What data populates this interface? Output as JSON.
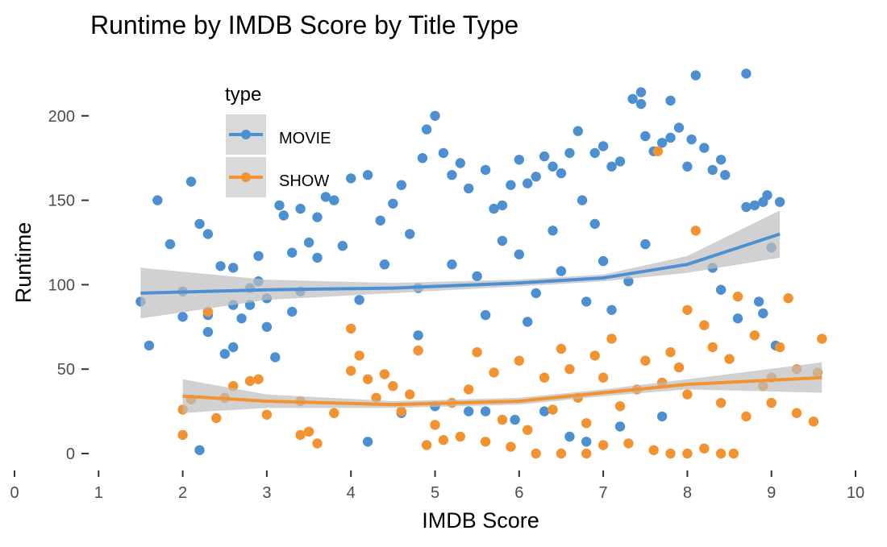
{
  "chart_data": {
    "type": "scatter",
    "title": "Runtime by IMDB Score by Title Type",
    "xlabel": "IMDB Score",
    "ylabel": "Runtime",
    "xlim": [
      0,
      10
    ],
    "ylim": [
      0,
      225
    ],
    "x_ticks": [
      "0",
      "1",
      "2",
      "3",
      "4",
      "5",
      "6",
      "7",
      "8",
      "9",
      "10"
    ],
    "y_ticks": [
      "0",
      "50",
      "100",
      "150",
      "200"
    ],
    "grid": false,
    "legend": {
      "title": "type",
      "placement": "top-left inside",
      "entries": [
        "MOVIE",
        "SHOW"
      ]
    },
    "series": [
      {
        "name": "MOVIE",
        "color": "#4d90d1",
        "trend": [
          [
            1.5,
            95
          ],
          [
            3,
            97
          ],
          [
            4.5,
            98
          ],
          [
            6,
            101
          ],
          [
            7,
            104
          ],
          [
            8,
            112
          ],
          [
            9.1,
            130
          ]
        ],
        "band_halfwidth": [
          15,
          6,
          3,
          2,
          2,
          5,
          14
        ],
        "points": [
          [
            1.5,
            90
          ],
          [
            1.6,
            64
          ],
          [
            1.7,
            150
          ],
          [
            1.85,
            124
          ],
          [
            2.0,
            81
          ],
          [
            2.0,
            96
          ],
          [
            2.1,
            161
          ],
          [
            2.2,
            136
          ],
          [
            2.2,
            2
          ],
          [
            2.3,
            130
          ],
          [
            2.3,
            82
          ],
          [
            2.3,
            72
          ],
          [
            2.45,
            111
          ],
          [
            2.5,
            59
          ],
          [
            2.6,
            110
          ],
          [
            2.6,
            88
          ],
          [
            2.6,
            63
          ],
          [
            2.7,
            80
          ],
          [
            2.8,
            98
          ],
          [
            2.8,
            88
          ],
          [
            2.9,
            117
          ],
          [
            2.9,
            102
          ],
          [
            3.0,
            75
          ],
          [
            3.0,
            92
          ],
          [
            3.1,
            57
          ],
          [
            3.15,
            147
          ],
          [
            3.2,
            141
          ],
          [
            3.3,
            119
          ],
          [
            3.3,
            84
          ],
          [
            3.4,
            145
          ],
          [
            3.4,
            96
          ],
          [
            3.5,
            125
          ],
          [
            3.6,
            116
          ],
          [
            3.6,
            140
          ],
          [
            3.7,
            152
          ],
          [
            3.8,
            150
          ],
          [
            3.9,
            123
          ],
          [
            4.0,
            163
          ],
          [
            4.1,
            91
          ],
          [
            4.2,
            165
          ],
          [
            4.2,
            7
          ],
          [
            4.35,
            138
          ],
          [
            4.4,
            112
          ],
          [
            4.5,
            148
          ],
          [
            4.6,
            159
          ],
          [
            4.7,
            130
          ],
          [
            4.8,
            70
          ],
          [
            4.85,
            175
          ],
          [
            4.9,
            192
          ],
          [
            5.0,
            200
          ],
          [
            5.1,
            178
          ],
          [
            5.2,
            165
          ],
          [
            5.3,
            172
          ],
          [
            5.4,
            157
          ],
          [
            5.6,
            168
          ],
          [
            5.7,
            145
          ],
          [
            5.8,
            147
          ],
          [
            5.9,
            159
          ],
          [
            6.0,
            174
          ],
          [
            6.1,
            160
          ],
          [
            6.2,
            164
          ],
          [
            6.3,
            176
          ],
          [
            6.4,
            170
          ],
          [
            6.5,
            166
          ],
          [
            6.6,
            178
          ],
          [
            6.7,
            191
          ],
          [
            6.75,
            150
          ],
          [
            6.9,
            178
          ],
          [
            7.0,
            182
          ],
          [
            7.1,
            170
          ],
          [
            7.2,
            173
          ],
          [
            7.35,
            210
          ],
          [
            7.45,
            214
          ],
          [
            7.45,
            207
          ],
          [
            7.5,
            188
          ],
          [
            7.6,
            179
          ],
          [
            7.7,
            184
          ],
          [
            7.8,
            209
          ],
          [
            7.8,
            187
          ],
          [
            7.9,
            193
          ],
          [
            8.0,
            170
          ],
          [
            8.05,
            186
          ],
          [
            8.1,
            224
          ],
          [
            8.2,
            181
          ],
          [
            8.3,
            168
          ],
          [
            8.4,
            174
          ],
          [
            8.45,
            165
          ],
          [
            8.7,
            225
          ],
          [
            8.7,
            146
          ],
          [
            8.8,
            147
          ],
          [
            8.9,
            149
          ],
          [
            8.95,
            153
          ],
          [
            9.1,
            149
          ],
          [
            9.0,
            122
          ],
          [
            8.85,
            90
          ],
          [
            8.9,
            83
          ],
          [
            9.05,
            64
          ],
          [
            8.6,
            80
          ],
          [
            8.4,
            97
          ],
          [
            8.3,
            110
          ],
          [
            7.7,
            22
          ],
          [
            7.2,
            16
          ],
          [
            6.8,
            7
          ],
          [
            6.6,
            10
          ],
          [
            6.3,
            25
          ],
          [
            5.95,
            20
          ],
          [
            5.6,
            25
          ],
          [
            5.4,
            25
          ],
          [
            5.0,
            28
          ],
          [
            4.6,
            24
          ],
          [
            6.0,
            118
          ],
          [
            6.5,
            108
          ],
          [
            7.0,
            114
          ],
          [
            5.5,
            105
          ],
          [
            6.2,
            95
          ],
          [
            6.8,
            90
          ],
          [
            7.3,
            102
          ],
          [
            5.8,
            126
          ],
          [
            6.4,
            132
          ],
          [
            7.5,
            124
          ],
          [
            5.2,
            112
          ],
          [
            4.8,
            98
          ],
          [
            6.9,
            136
          ],
          [
            7.1,
            85
          ],
          [
            5.6,
            82
          ],
          [
            6.1,
            78
          ]
        ]
      },
      {
        "name": "SHOW",
        "color": "#f29230",
        "trend": [
          [
            2.0,
            34
          ],
          [
            3.0,
            31
          ],
          [
            4.5,
            29
          ],
          [
            6.0,
            31
          ],
          [
            7.0,
            36
          ],
          [
            8.0,
            41
          ],
          [
            9.6,
            45
          ]
        ],
        "band_halfwidth": [
          10,
          4,
          2,
          2,
          2,
          3,
          9
        ],
        "points": [
          [
            2.0,
            26
          ],
          [
            2.0,
            11
          ],
          [
            2.1,
            32
          ],
          [
            2.3,
            84
          ],
          [
            2.4,
            21
          ],
          [
            2.5,
            33
          ],
          [
            2.6,
            40
          ],
          [
            2.8,
            43
          ],
          [
            2.9,
            44
          ],
          [
            3.0,
            23
          ],
          [
            3.4,
            31
          ],
          [
            3.4,
            11
          ],
          [
            3.5,
            13
          ],
          [
            3.6,
            6
          ],
          [
            3.8,
            24
          ],
          [
            4.0,
            74
          ],
          [
            4.0,
            49
          ],
          [
            4.1,
            58
          ],
          [
            4.2,
            44
          ],
          [
            4.3,
            33
          ],
          [
            4.4,
            47
          ],
          [
            4.5,
            40
          ],
          [
            4.6,
            25
          ],
          [
            4.7,
            35
          ],
          [
            4.8,
            61
          ],
          [
            4.9,
            5
          ],
          [
            5.0,
            17
          ],
          [
            5.1,
            8
          ],
          [
            5.3,
            10
          ],
          [
            5.6,
            7
          ],
          [
            5.9,
            4
          ],
          [
            6.2,
            0
          ],
          [
            6.5,
            0
          ],
          [
            6.8,
            0
          ],
          [
            7.0,
            5
          ],
          [
            7.3,
            6
          ],
          [
            7.6,
            2
          ],
          [
            7.8,
            0
          ],
          [
            8.0,
            0
          ],
          [
            8.2,
            3
          ],
          [
            8.4,
            0
          ],
          [
            8.55,
            0
          ],
          [
            7.65,
            179
          ],
          [
            8.1,
            132
          ],
          [
            8.0,
            85
          ],
          [
            8.2,
            76
          ],
          [
            8.6,
            93
          ],
          [
            8.8,
            70
          ],
          [
            9.1,
            63
          ],
          [
            9.2,
            92
          ],
          [
            9.3,
            24
          ],
          [
            9.3,
            50
          ],
          [
            9.5,
            19
          ],
          [
            9.55,
            48
          ],
          [
            9.6,
            68
          ],
          [
            9.0,
            45
          ],
          [
            8.9,
            40
          ],
          [
            8.5,
            56
          ],
          [
            8.3,
            63
          ],
          [
            7.9,
            51
          ],
          [
            7.5,
            55
          ],
          [
            7.1,
            68
          ],
          [
            6.9,
            58
          ],
          [
            6.6,
            50
          ],
          [
            6.3,
            45
          ],
          [
            6.0,
            55
          ],
          [
            5.7,
            48
          ],
          [
            5.4,
            38
          ],
          [
            5.2,
            30
          ],
          [
            5.8,
            20
          ],
          [
            6.1,
            14
          ],
          [
            6.4,
            26
          ],
          [
            6.7,
            33
          ],
          [
            7.2,
            28
          ],
          [
            7.4,
            38
          ],
          [
            7.7,
            42
          ],
          [
            8.0,
            35
          ],
          [
            8.4,
            30
          ],
          [
            8.7,
            22
          ],
          [
            9.0,
            30
          ],
          [
            6.5,
            62
          ],
          [
            7.0,
            45
          ],
          [
            7.8,
            60
          ],
          [
            5.5,
            60
          ],
          [
            6.8,
            18
          ]
        ]
      }
    ]
  }
}
